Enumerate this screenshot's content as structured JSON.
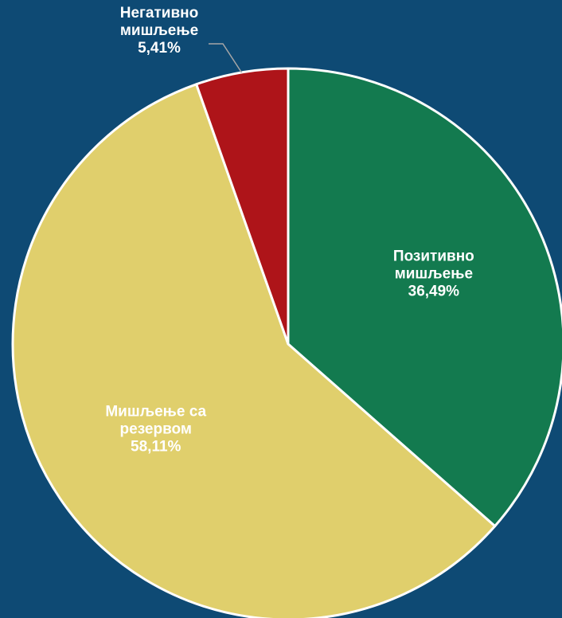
{
  "chart_data": {
    "type": "pie",
    "title": "",
    "colors": {
      "background": "#0e4a74",
      "slice_border": "#ffffff",
      "label_text": "#ffffff",
      "outside_label_text": "#ffffff",
      "leader_line": "#a6a6a6"
    },
    "slices": [
      {
        "label_lines": [
          "Позитивно",
          "мишљење"
        ],
        "percent_label": "36,49%",
        "value": 36.49,
        "color": "#137a4f",
        "label_position": "inside"
      },
      {
        "label_lines": [
          "Мишљење са",
          "резервом"
        ],
        "percent_label": "58,11%",
        "value": 58.11,
        "color": "#e0cf6c",
        "label_position": "inside"
      },
      {
        "label_lines": [
          "Негативно",
          "мишљење"
        ],
        "percent_label": "5,41%",
        "value": 5.41,
        "color": "#ae1419",
        "label_position": "outside"
      }
    ]
  }
}
